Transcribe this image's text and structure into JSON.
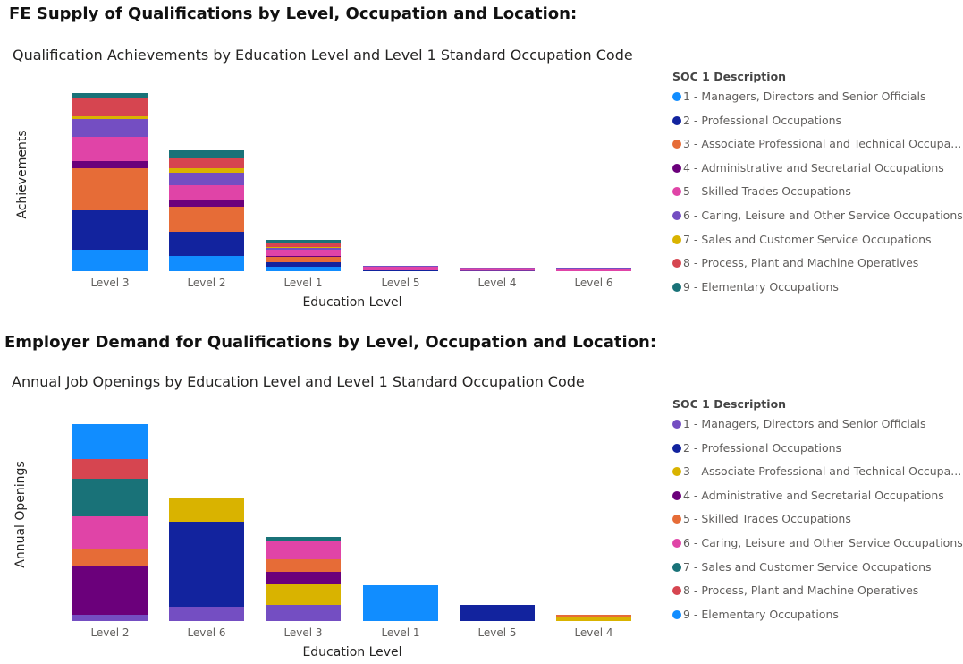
{
  "section1_heading": "FE Supply of Qualifications by Level, Occupation and Location:",
  "section2_heading": "Employer Demand for Qualifications by Level, Occupation and Location:",
  "chart_data": [
    {
      "type": "bar",
      "stacked": true,
      "title": "Qualification Achievements by Education Level and Level 1 Standard Occupation Code",
      "xlabel": "Education Level",
      "ylabel": "Achievements",
      "ylim": [
        0,
        210
      ],
      "grid": false,
      "legend_position": "right",
      "legend_title": "SOC 1 Description",
      "categories": [
        "Level 3",
        "Level 2",
        "Level 1",
        "Level 5",
        "Level 4",
        "Level 6"
      ],
      "series": [
        {
          "name": "1 - Managers, Directors and Senior Officials",
          "color": "#118DFF",
          "values": [
            24,
            17,
            5,
            0,
            0,
            0
          ]
        },
        {
          "name": "2 - Professional Occupations",
          "color": "#12239E",
          "values": [
            44,
            27,
            5,
            1,
            0.5,
            0
          ]
        },
        {
          "name": "3 - Associate Professional and Technical Occupa...",
          "color": "#E66C37",
          "values": [
            47,
            28,
            6,
            0,
            0,
            0
          ]
        },
        {
          "name": "4 - Administrative and Secretarial Occupations",
          "color": "#6B007B",
          "values": [
            8,
            7,
            1,
            0,
            0,
            0
          ]
        },
        {
          "name": "5 - Skilled Trades Occupations",
          "color": "#E044A7",
          "values": [
            27,
            17,
            7,
            4,
            2,
            2
          ]
        },
        {
          "name": "6 - Caring, Leisure and Other Service Occupations",
          "color": "#744EC2",
          "values": [
            20,
            14,
            2,
            1,
            0.5,
            1
          ]
        },
        {
          "name": "7 - Sales and Customer Service Occupations",
          "color": "#D9B300",
          "values": [
            3,
            5,
            1,
            0,
            0,
            0
          ]
        },
        {
          "name": "8 - Process, Plant and Machine Operatives",
          "color": "#D64550",
          "values": [
            21,
            11,
            4,
            0,
            0,
            0
          ]
        },
        {
          "name": "9 - Elementary Occupations",
          "color": "#197278",
          "values": [
            5,
            9,
            4,
            0,
            0,
            0
          ]
        }
      ]
    },
    {
      "type": "bar",
      "stacked": true,
      "title": "Annual Job Openings by Education Level and Level 1 Standard Occupation Code",
      "xlabel": "Education Level",
      "ylabel": "Annual Openings",
      "ylim": [
        0,
        230
      ],
      "grid": false,
      "legend_position": "right",
      "legend_title": "SOC 1 Description",
      "categories": [
        "Level 2",
        "Level 6",
        "Level 3",
        "Level 1",
        "Level 5",
        "Level 4"
      ],
      "series": [
        {
          "name": "1 - Managers, Directors and Senior Officials",
          "color": "#744EC2",
          "values": [
            7,
            16,
            18,
            0,
            0,
            0
          ]
        },
        {
          "name": "2 - Professional Occupations",
          "color": "#12239E",
          "values": [
            0,
            95,
            0,
            0,
            18,
            0
          ]
        },
        {
          "name": "3 - Associate Professional and Technical Occupa...",
          "color": "#D9B300",
          "values": [
            0,
            26,
            23,
            0,
            0,
            5
          ]
        },
        {
          "name": "4 - Administrative and Secretarial Occupations",
          "color": "#6B007B",
          "values": [
            54,
            0,
            14,
            0,
            0,
            0
          ]
        },
        {
          "name": "5 - Skilled Trades Occupations",
          "color": "#E66C37",
          "values": [
            19,
            0,
            14,
            0,
            0,
            2
          ]
        },
        {
          "name": "6 - Caring, Leisure and Other Service Occupations",
          "color": "#E044A7",
          "values": [
            37,
            0,
            21,
            0,
            0,
            0
          ]
        },
        {
          "name": "7 - Sales and Customer Service Occupations",
          "color": "#197278",
          "values": [
            42,
            0,
            4,
            0,
            0,
            0
          ]
        },
        {
          "name": "8 - Process, Plant and Machine Operatives",
          "color": "#D64550",
          "values": [
            22,
            0,
            0,
            0,
            0,
            0
          ]
        },
        {
          "name": "9 - Elementary Occupations",
          "color": "#118DFF",
          "values": [
            39,
            0,
            0,
            40,
            0,
            0
          ]
        }
      ]
    }
  ]
}
